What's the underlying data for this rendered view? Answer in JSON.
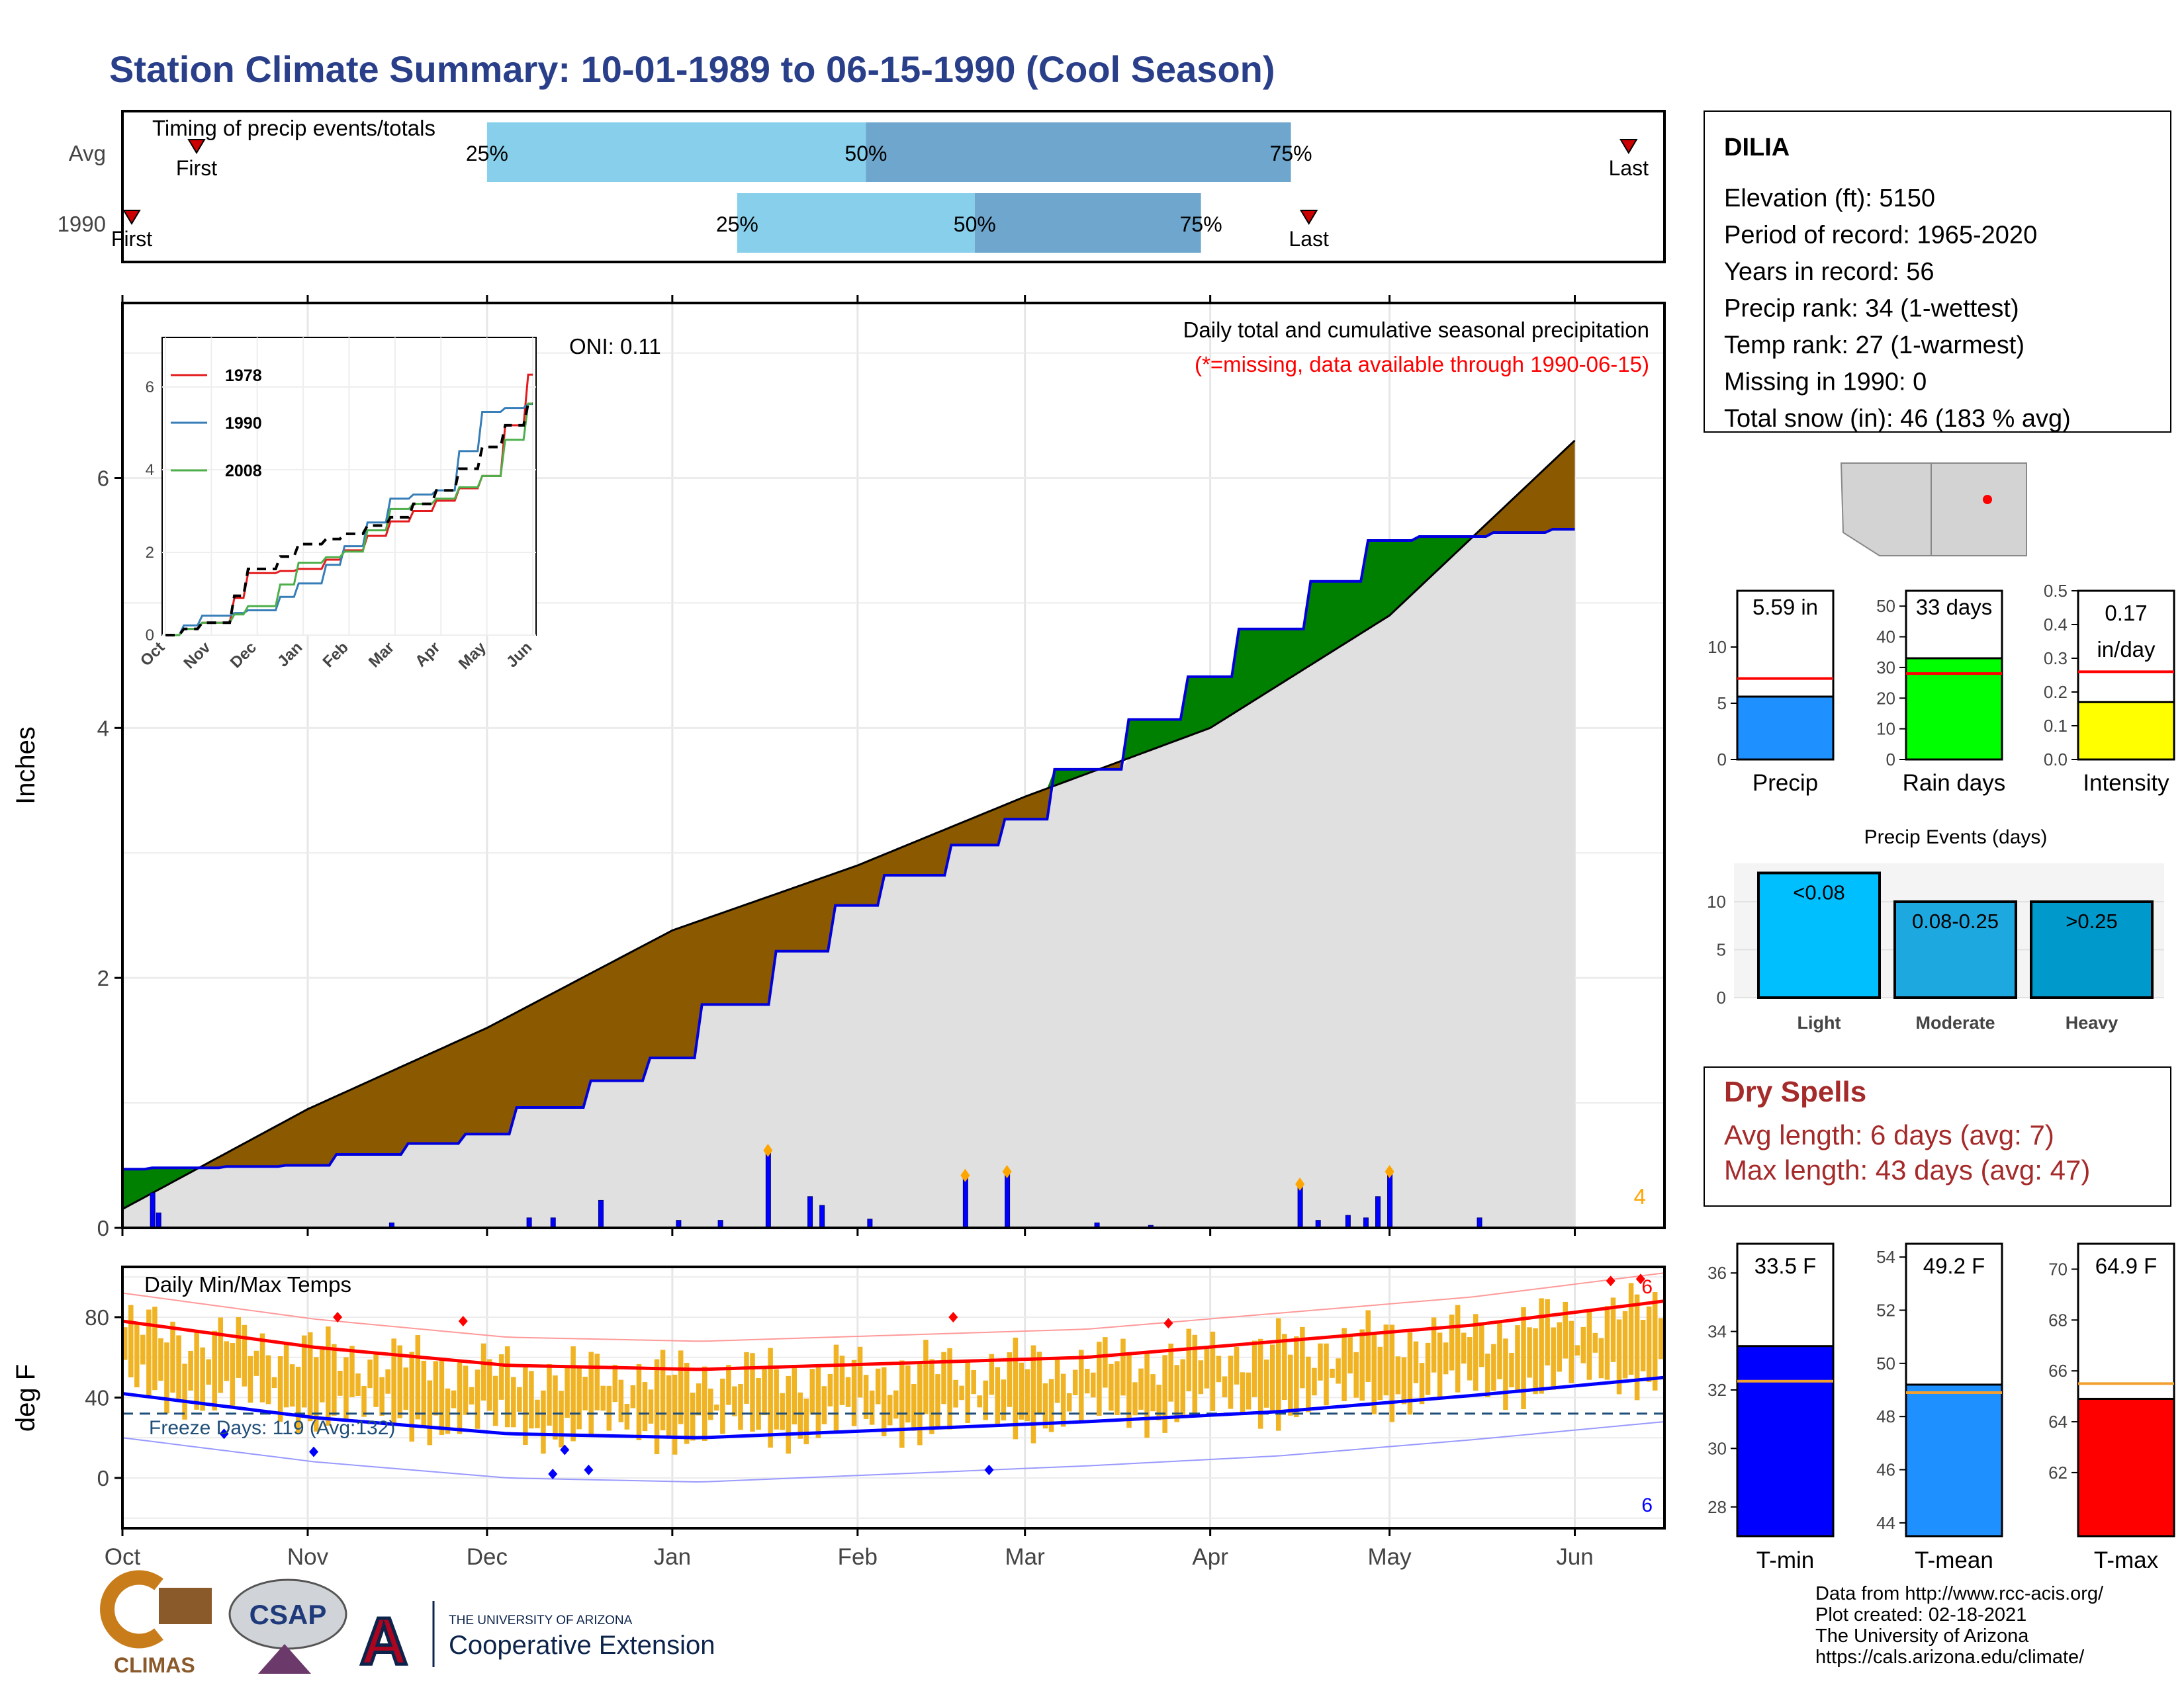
{
  "title": "Station Climate Summary: 10-01-1989 to 06-15-1990 (Cool Season)",
  "colors": {
    "title": "#2a3f8a",
    "above_avg": "#8B5A00",
    "below_avg": "#008000",
    "season_fill": "#e0e0e0",
    "season_line": "#0000dd",
    "light_q": "#87cfeb",
    "dark_q": "#6ea6cd",
    "dry_spells": "#a52a2a",
    "missing_note": "#ff0000",
    "temp_bars": "#f0b323",
    "tmax_line": "#ff0000",
    "tmin_line": "#0000ff",
    "freeze_line": "#1f4e79"
  },
  "timing": {
    "title": "Timing of precip events/totals",
    "rows": [
      {
        "label": "Avg",
        "first_label": "First",
        "last_label": "Last",
        "q25_label": "25%",
        "q50_label": "50%",
        "q75_label": "75%"
      },
      {
        "label": "1990",
        "first_label": "First",
        "last_label": "Last",
        "q25_label": "25%",
        "q50_label": "50%",
        "q75_label": "75%"
      }
    ]
  },
  "precip_panel": {
    "title": "Daily total and cumulative seasonal precipitation",
    "note": "(*=missing, data available through 1990-06-15)",
    "oni": "ONI: 0.11",
    "ylabel": "Inches",
    "yticks": [
      "0",
      "2",
      "4",
      "6"
    ],
    "extreme_count": "4"
  },
  "inset": {
    "legend": [
      "1978",
      "1990",
      "2008"
    ],
    "series_colors": [
      "#e41a1c",
      "#377eb8",
      "#4daf4a"
    ],
    "yticks": [
      "0",
      "2",
      "4",
      "6"
    ],
    "xticks": [
      "Oct",
      "Nov",
      "Dec",
      "Jan",
      "Feb",
      "Mar",
      "Apr",
      "May",
      "Jun"
    ]
  },
  "temp_panel": {
    "title": "Daily Min/Max Temps",
    "ylabel": "deg F",
    "yticks": [
      "0",
      "40",
      "80"
    ],
    "freeze_label": "Freeze Days: 119 (Avg:132)",
    "max_count": "6",
    "min_count": "6"
  },
  "months": [
    "Oct",
    "Nov",
    "Dec",
    "Jan",
    "Feb",
    "Mar",
    "Apr",
    "May",
    "Jun"
  ],
  "station": {
    "name": "DILIA",
    "lines": [
      "Elevation (ft): 5150",
      "Period of record: 1965-2020",
      "Years in record: 56",
      "Precip rank: 34 (1-wettest)",
      "Temp rank: 27 (1-warmest)",
      "Missing in 1990: 0",
      "Total snow (in): 46 (183 % avg)"
    ]
  },
  "mini_bars": [
    {
      "label": "Precip",
      "value_text": "5.59 in",
      "value": 5.59,
      "avg": 7.2,
      "max": 15,
      "ticks": [
        "0",
        "5",
        "10"
      ],
      "tick_values": [
        0,
        5,
        10
      ],
      "color": "#1e90ff"
    },
    {
      "label": "Rain days",
      "value_text": "33 days",
      "value": 33,
      "avg": 28,
      "max": 55,
      "ticks": [
        "0",
        "10",
        "20",
        "30",
        "40",
        "50"
      ],
      "tick_values": [
        0,
        10,
        20,
        30,
        40,
        50
      ],
      "color": "#00ff00"
    },
    {
      "label": "Intensity",
      "value_text": "0.17 in/day",
      "value_line1": "0.17",
      "value_line2": "in/day",
      "value": 0.17,
      "avg": 0.26,
      "max": 0.5,
      "ticks": [
        "0.0",
        "0.1",
        "0.2",
        "0.3",
        "0.4",
        "0.5"
      ],
      "tick_values": [
        0,
        0.1,
        0.2,
        0.3,
        0.4,
        0.5
      ],
      "color": "#ffff00"
    }
  ],
  "events": {
    "title": "Precip Events (days)",
    "categories": [
      "Light",
      "Moderate",
      "Heavy"
    ],
    "bar_labels": [
      "<0.08",
      "0.08-0.25",
      ">0.25"
    ],
    "values": [
      13,
      10,
      10
    ],
    "yticks": [
      "0",
      "5",
      "10"
    ],
    "colors": [
      "#00bfff",
      "#1ea8e0",
      "#0099cc"
    ]
  },
  "dry_spells": {
    "title": "Dry Spells",
    "avg_line": "Avg length: 6 days (avg: 7)",
    "max_line": "Max length: 43 days (avg: 47)"
  },
  "temp_bars": [
    {
      "label": "T-min",
      "value_text": "33.5 F",
      "value": 33.5,
      "avg": 32.3,
      "min": 27,
      "max": 37,
      "ticks": [
        "28",
        "30",
        "32",
        "34",
        "36"
      ],
      "tick_values": [
        28,
        30,
        32,
        34,
        36
      ],
      "color": "#0000ff"
    },
    {
      "label": "T-mean",
      "value_text": "49.2 F",
      "value": 49.2,
      "avg": 48.9,
      "min": 43.5,
      "max": 54.5,
      "ticks": [
        "44",
        "46",
        "48",
        "50",
        "52",
        "54"
      ],
      "tick_values": [
        44,
        46,
        48,
        50,
        52,
        54
      ],
      "color": "#1e90ff"
    },
    {
      "label": "T-max",
      "value_text": "64.9 F",
      "value": 64.9,
      "avg": 65.5,
      "min": 59.5,
      "max": 71,
      "ticks": [
        "62",
        "64",
        "66",
        "68",
        "70"
      ],
      "tick_values": [
        62,
        64,
        66,
        68,
        70
      ],
      "color": "#ff0000"
    }
  ],
  "footer": {
    "lines": [
      "Data from http://www.rcc-acis.org/",
      "Plot created: 02-18-2021",
      "The University of Arizona",
      "https://cals.arizona.edu/climate/"
    ],
    "logos": {
      "climas": "CLIMAS",
      "csap": "CSAP",
      "ua_small": "THE UNIVERSITY OF ARIZONA",
      "ua_large": "Cooperative Extension"
    }
  },
  "chart_data": [
    {
      "type": "area",
      "title": "Daily total and cumulative seasonal precipitation",
      "ylabel": "Inches",
      "ylim": [
        0,
        7.4
      ],
      "x": [
        "Oct",
        "Nov",
        "Dec",
        "Jan",
        "Feb",
        "Mar",
        "Apr",
        "May",
        "Jun"
      ],
      "series": [
        {
          "name": "1990",
          "values": [
            0.47,
            0.5,
            0.75,
            1.36,
            2.58,
            3.27,
            4.41,
            5.5,
            5.59
          ]
        },
        {
          "name": "Avg",
          "values": [
            0.15,
            0.95,
            1.6,
            2.38,
            2.9,
            3.45,
            4.0,
            4.9,
            6.3
          ]
        }
      ],
      "daily_precip_peaks": [
        {
          "date": "1990-01-17",
          "inches": 0.62
        },
        {
          "date": "1990-02-19",
          "inches": 0.42
        },
        {
          "date": "1990-02-26",
          "inches": 0.45
        },
        {
          "date": "1990-04-16",
          "inches": 0.35
        },
        {
          "date": "1990-05-01",
          "inches": 0.45
        }
      ]
    },
    {
      "type": "line",
      "title": "Inset: cumulative precipitation comparison years",
      "x": [
        "Oct",
        "Nov",
        "Dec",
        "Jan",
        "Feb",
        "Mar",
        "Apr",
        "May",
        "Jun"
      ],
      "ylim": [
        0,
        7.2
      ],
      "series": [
        {
          "name": "1978",
          "values": [
            0,
            0.3,
            1.5,
            1.6,
            2.05,
            2.75,
            3.25,
            3.85,
            6.3
          ]
        },
        {
          "name": "1990",
          "values": [
            0,
            0.47,
            0.6,
            1.25,
            2.15,
            3.3,
            3.5,
            5.4,
            5.59
          ]
        },
        {
          "name": "2008",
          "values": [
            0,
            0.3,
            0.7,
            1.75,
            2.02,
            3.05,
            3.3,
            3.85,
            5.6
          ]
        },
        {
          "name": "Avg",
          "values": [
            0,
            0.3,
            1.6,
            2.2,
            2.45,
            2.85,
            3.5,
            4.55,
            5.6
          ]
        }
      ]
    },
    {
      "type": "bar",
      "title": "Daily Min/Max Temps",
      "ylabel": "deg F",
      "ylim": [
        -25,
        105
      ],
      "x": [
        "Oct",
        "Nov",
        "Dec",
        "Jan",
        "Feb",
        "Mar",
        "Apr",
        "May",
        "Jun"
      ],
      "series": [
        {
          "name": "Avg Tmax",
          "values": [
            78,
            65,
            56,
            54,
            57,
            60,
            68,
            76,
            88
          ]
        },
        {
          "name": "Avg Tmin",
          "values": [
            42,
            30,
            22,
            20,
            24,
            28,
            33,
            41,
            50
          ]
        }
      ],
      "freeze_threshold": 32
    }
  ]
}
